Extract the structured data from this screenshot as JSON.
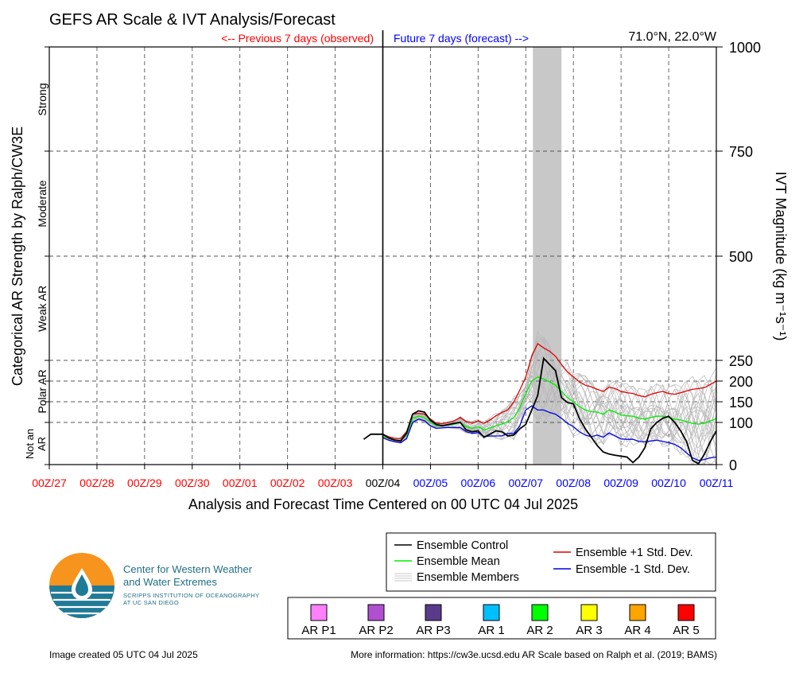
{
  "title": "GEFS AR Scale & IVT Analysis/Forecast",
  "previous_label": "<-- Previous 7 days (observed)",
  "future_label": "Future 7 days (forecast) -->",
  "location": "71.0°N, 22.0°W",
  "xlabel": "Analysis and Forecast Time Centered on 00 UTC 04 Jul 2025",
  "left_ylabel": "Categorical AR Strength by Ralph/CW3E",
  "right_ylabel": "IVT Magnitude (kg m⁻¹s⁻¹)",
  "categories": [
    {
      "label": "Strong",
      "from": 750,
      "to": 1000
    },
    {
      "label": "Moderate",
      "from": 500,
      "to": 750
    },
    {
      "label": "Weak AR",
      "from": 250,
      "to": 500
    },
    {
      "label": "Polar AR",
      "from": 150,
      "to": 250
    },
    {
      "label": "Not an AR",
      "from": 0,
      "to": 100
    }
  ],
  "org": {
    "name_line1": "Center for Western Weather",
    "name_line2": "and Water Extremes",
    "sub_line1": "SCRIPPS INSTITUTION OF OCEANOGRAPHY",
    "sub_line2": "AT UC SAN DIEGO"
  },
  "created": "Image created 05 UTC 04 Jul 2025",
  "more_info": "More information: https://cw3e.ucsd.edu AR Scale based on Ralph et al. (2019; BAMS)",
  "legend": {
    "control": "Ensemble Control",
    "mean": "Ensemble Mean",
    "members": "Ensemble Members",
    "plus_std": "Ensemble +1 Std. Dev.",
    "minus_std": "Ensemble -1 Std. Dev."
  },
  "ar_scale": [
    {
      "label": "AR P1",
      "color": "#ff80ff"
    },
    {
      "label": "AR P2",
      "color": "#b050d0"
    },
    {
      "label": "AR P3",
      "color": "#5a3a8a"
    },
    {
      "label": "AR 1",
      "color": "#00bfff"
    },
    {
      "label": "AR 2",
      "color": "#00ff00"
    },
    {
      "label": "AR 3",
      "color": "#ffff00"
    },
    {
      "label": "AR 4",
      "color": "#ffa500"
    },
    {
      "label": "AR 5",
      "color": "#ff0000"
    }
  ],
  "colors": {
    "observed": "#ff0000",
    "forecast": "#0000ff",
    "control": "#000000",
    "mean": "#00ee00",
    "members": "#b8b8b8",
    "plus_std": "#e00000",
    "minus_std": "#0000e0",
    "shade": "#c8c8c8"
  },
  "chart_data": {
    "type": "line",
    "ylim": [
      0,
      1000
    ],
    "xlim": [
      -7,
      7
    ],
    "x_unit": "days relative to 00Z/04",
    "x_ticks": [
      {
        "x": -7,
        "label": "00Z/27",
        "period": "observed"
      },
      {
        "x": -6,
        "label": "00Z/28",
        "period": "observed"
      },
      {
        "x": -5,
        "label": "00Z/29",
        "period": "observed"
      },
      {
        "x": -4,
        "label": "00Z/30",
        "period": "observed"
      },
      {
        "x": -3,
        "label": "00Z/01",
        "period": "observed"
      },
      {
        "x": -2,
        "label": "00Z/02",
        "period": "observed"
      },
      {
        "x": -1,
        "label": "00Z/03",
        "period": "observed"
      },
      {
        "x": 0,
        "label": "00Z/04",
        "period": "current"
      },
      {
        "x": 1,
        "label": "00Z/05",
        "period": "forecast"
      },
      {
        "x": 2,
        "label": "00Z/06",
        "period": "forecast"
      },
      {
        "x": 3,
        "label": "00Z/07",
        "period": "forecast"
      },
      {
        "x": 4,
        "label": "00Z/08",
        "period": "forecast"
      },
      {
        "x": 5,
        "label": "00Z/09",
        "period": "forecast"
      },
      {
        "x": 6,
        "label": "00Z/10",
        "period": "forecast"
      },
      {
        "x": 7,
        "label": "00Z/11",
        "period": "forecast"
      }
    ],
    "y_ticks": [
      0,
      100,
      150,
      200,
      250,
      500,
      750,
      1000
    ],
    "shaded_period": {
      "from": 3.15,
      "to": 3.75
    },
    "x": [
      -0.4,
      -0.25,
      -0.125,
      0,
      0.125,
      0.25,
      0.375,
      0.5,
      0.625,
      0.75,
      0.875,
      1,
      1.125,
      1.25,
      1.375,
      1.5,
      1.625,
      1.75,
      1.875,
      2,
      2.125,
      2.25,
      2.375,
      2.5,
      2.625,
      2.75,
      2.875,
      3,
      3.125,
      3.25,
      3.375,
      3.5,
      3.625,
      3.75,
      3.875,
      4,
      4.125,
      4.25,
      4.375,
      4.5,
      4.625,
      4.75,
      4.875,
      5,
      5.125,
      5.25,
      5.375,
      5.5,
      5.625,
      5.75,
      5.875,
      6,
      6.125,
      6.25,
      6.375,
      6.5,
      6.625,
      6.75,
      6.875,
      7
    ],
    "series": [
      {
        "name": "Ensemble Control",
        "values": [
          60,
          72,
          72,
          72,
          63,
          58,
          56,
          75,
          120,
          128,
          125,
          105,
          95,
          92,
          95,
          98,
          100,
          82,
          78,
          80,
          65,
          72,
          80,
          78,
          68,
          70,
          85,
          95,
          130,
          165,
          255,
          240,
          225,
          160,
          148,
          145,
          110,
          85,
          65,
          45,
          30,
          25,
          22,
          20,
          18,
          5,
          18,
          40,
          85,
          100,
          110,
          115,
          100,
          80,
          55,
          10,
          2,
          25,
          55,
          80
        ]
      },
      {
        "name": "Ensemble Mean",
        "values": [
          null,
          null,
          null,
          68,
          62,
          58,
          57,
          70,
          110,
          115,
          112,
          100,
          92,
          92,
          94,
          96,
          100,
          90,
          86,
          90,
          82,
          87,
          92,
          96,
          102,
          112,
          135,
          170,
          200,
          210,
          205,
          198,
          190,
          175,
          160,
          150,
          138,
          130,
          126,
          125,
          120,
          130,
          125,
          118,
          116,
          115,
          110,
          108,
          112,
          115,
          115,
          111,
          108,
          106,
          102,
          98,
          96,
          98,
          104,
          109
        ]
      },
      {
        "name": "Ensemble +1 Std. Dev.",
        "values": [
          null,
          null,
          null,
          72,
          66,
          62,
          62,
          78,
          120,
          122,
          120,
          108,
          98,
          97,
          100,
          104,
          112,
          102,
          98,
          104,
          98,
          106,
          116,
          124,
          130,
          150,
          178,
          210,
          260,
          290,
          280,
          272,
          260,
          240,
          222,
          210,
          198,
          190,
          186,
          180,
          175,
          185,
          182,
          175,
          172,
          170,
          165,
          162,
          168,
          172,
          175,
          170,
          168,
          172,
          176,
          180,
          182,
          184,
          192,
          200
        ]
      },
      {
        "name": "Ensemble -1 Std. Dev.",
        "values": [
          null,
          null,
          null,
          64,
          58,
          54,
          52,
          62,
          100,
          108,
          104,
          92,
          86,
          87,
          88,
          88,
          88,
          78,
          74,
          76,
          66,
          68,
          68,
          68,
          74,
          74,
          92,
          130,
          140,
          130,
          130,
          124,
          120,
          110,
          98,
          90,
          78,
          70,
          66,
          70,
          65,
          75,
          68,
          61,
          60,
          60,
          55,
          54,
          56,
          58,
          55,
          52,
          48,
          40,
          28,
          16,
          10,
          12,
          16,
          18
        ]
      }
    ],
    "members_note": "Ensemble members drawn as a spread around the ensemble mean"
  }
}
